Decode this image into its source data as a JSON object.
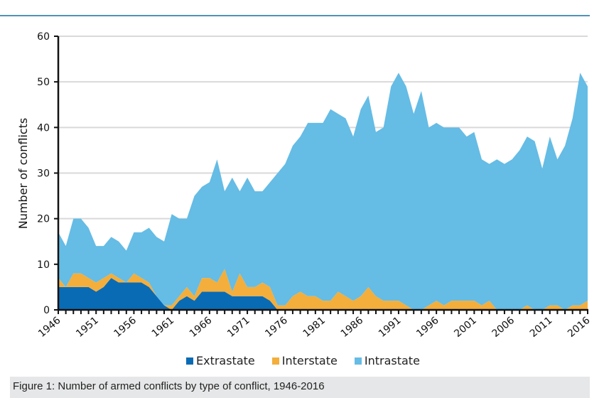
{
  "chart_data": {
    "type": "area",
    "stacked": true,
    "title": "",
    "xlabel": "",
    "ylabel": "Number of conflicts",
    "ylim": [
      0,
      60
    ],
    "yticks": [
      0,
      10,
      20,
      30,
      40,
      50,
      60
    ],
    "xlim": [
      1946,
      2016
    ],
    "xtick_labels": [
      "1946",
      "1951",
      "1956",
      "1961",
      "1966",
      "1971",
      "1976",
      "1981",
      "1986",
      "1991",
      "1996",
      "2001",
      "2006",
      "2011",
      "2016"
    ],
    "grid": "horizontal",
    "legend_position": "bottom-center",
    "x": [
      1946,
      1947,
      1948,
      1949,
      1950,
      1951,
      1952,
      1953,
      1954,
      1955,
      1956,
      1957,
      1958,
      1959,
      1960,
      1961,
      1962,
      1963,
      1964,
      1965,
      1966,
      1967,
      1968,
      1969,
      1970,
      1971,
      1972,
      1973,
      1974,
      1975,
      1976,
      1977,
      1978,
      1979,
      1980,
      1981,
      1982,
      1983,
      1984,
      1985,
      1986,
      1987,
      1988,
      1989,
      1990,
      1991,
      1992,
      1993,
      1994,
      1995,
      1996,
      1997,
      1998,
      1999,
      2000,
      2001,
      2002,
      2003,
      2004,
      2005,
      2006,
      2007,
      2008,
      2009,
      2010,
      2011,
      2012,
      2013,
      2014,
      2015,
      2016
    ],
    "series": [
      {
        "name": "Extrastate",
        "color": "#0a6bb5",
        "values": [
          5,
          5,
          5,
          5,
          5,
          4,
          5,
          7,
          6,
          6,
          6,
          6,
          5,
          3,
          1,
          0,
          2,
          3,
          2,
          4,
          4,
          4,
          4,
          3,
          3,
          3,
          3,
          3,
          2,
          0,
          0,
          0,
          0,
          0,
          0,
          0,
          0,
          0,
          0,
          0,
          0,
          0,
          0,
          0,
          0,
          0,
          0,
          0,
          0,
          0,
          0,
          0,
          0,
          0,
          0,
          0,
          0,
          0,
          0,
          0,
          0,
          0,
          0,
          0,
          0,
          0,
          0,
          0,
          0,
          0,
          0
        ]
      },
      {
        "name": "Interstate",
        "color": "#f4ae3b",
        "values": [
          2,
          0,
          3,
          3,
          2,
          2,
          2,
          1,
          1,
          0,
          2,
          1,
          1,
          0,
          0,
          1,
          1,
          2,
          1,
          3,
          3,
          2,
          5,
          1,
          5,
          2,
          2,
          3,
          3,
          1,
          1,
          3,
          4,
          3,
          3,
          2,
          2,
          4,
          3,
          2,
          3,
          5,
          3,
          2,
          2,
          2,
          1,
          0,
          0,
          1,
          2,
          1,
          2,
          2,
          2,
          2,
          1,
          2,
          0,
          0,
          0,
          0,
          1,
          0,
          0,
          1,
          1,
          0,
          1,
          1,
          2
        ]
      },
      {
        "name": "Intrastate",
        "color": "#65bce5",
        "values": [
          10,
          9,
          12,
          12,
          11,
          8,
          7,
          8,
          8,
          7,
          9,
          10,
          12,
          13,
          14,
          20,
          17,
          15,
          22,
          20,
          21,
          27,
          17,
          25,
          18,
          24,
          21,
          20,
          23,
          29,
          31,
          33,
          34,
          38,
          38,
          39,
          42,
          39,
          39,
          36,
          41,
          42,
          36,
          38,
          47,
          50,
          48,
          43,
          48,
          39,
          39,
          39,
          38,
          38,
          36,
          37,
          32,
          30,
          33,
          32,
          33,
          35,
          37,
          37,
          31,
          37,
          32,
          36,
          41,
          51,
          47
        ]
      }
    ]
  },
  "legend": {
    "items": [
      {
        "label": "Extrastate",
        "color": "#0a6bb5"
      },
      {
        "label": "Interstate",
        "color": "#f4ae3b"
      },
      {
        "label": "Intrastate",
        "color": "#65bce5"
      }
    ]
  },
  "caption": "Figure 1: Number of armed conflicts by type of conflict, 1946-2016"
}
